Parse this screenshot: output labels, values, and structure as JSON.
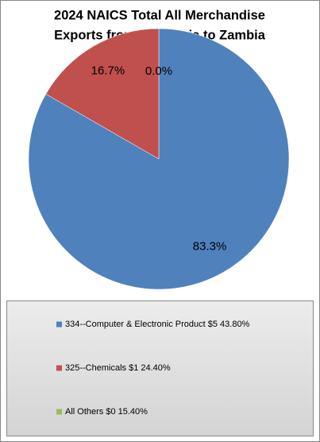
{
  "chart_data": {
    "type": "pie",
    "title": [
      "2024 NAICS Total All Merchandise",
      "Exports from California to Zambia"
    ],
    "categories": [
      "334--Computer & Electronic Product $5 43.80%",
      "325--Chemicals $1 24.40%",
      "All Others $0 15.40%"
    ],
    "values": [
      83.3,
      16.7,
      0.0
    ],
    "value_labels": [
      "83.3%",
      "16.7%",
      "0.0%"
    ],
    "colors": [
      "#4f81bd",
      "#c0504d",
      "#9bbb59"
    ]
  }
}
